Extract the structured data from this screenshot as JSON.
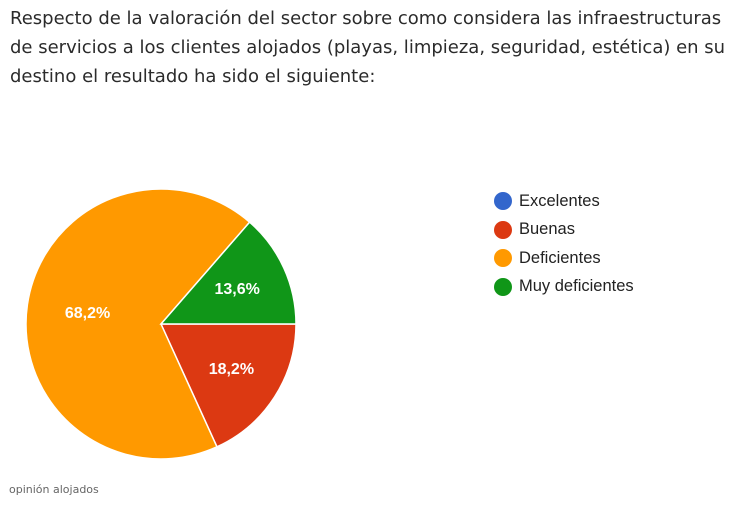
{
  "intro_text": "Respecto de la valoración del sector sobre como considera las infraestructuras de servicios a los clientes alojados (playas, limpieza, seguridad, estética) en su destino el resultado ha sido el siguiente:",
  "caption": "opinión alojados",
  "chart_data": {
    "type": "pie",
    "categories": [
      "Excelentes",
      "Buenas",
      "Deficientes",
      "Muy deficientes"
    ],
    "values": [
      0,
      18.2,
      68.2,
      13.6
    ],
    "data_labels": [
      "",
      "18,2%",
      "68,2%",
      "13,6%"
    ],
    "colors": [
      "#3366cc",
      "#dc3912",
      "#ff9900",
      "#109618"
    ],
    "legend_position": "right",
    "title": "",
    "xlabel": "",
    "ylabel": ""
  }
}
